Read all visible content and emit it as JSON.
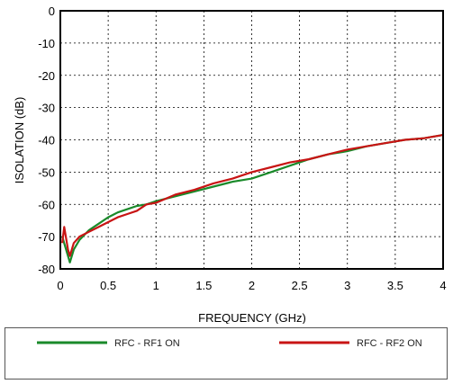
{
  "chart_data": {
    "type": "line",
    "xlabel": "FREQUENCY (GHz)",
    "ylabel": "ISOLATION (dB)",
    "xlim": [
      0,
      4
    ],
    "ylim": [
      -80,
      0
    ],
    "xticks": [
      0,
      0.5,
      1,
      1.5,
      2,
      2.5,
      3,
      3.5,
      4
    ],
    "xtick_labels": [
      "0",
      "0.5",
      "1",
      "1.5",
      "2",
      "2.5",
      "3",
      "3.5",
      "4"
    ],
    "yticks": [
      0,
      -10,
      -20,
      -30,
      -40,
      -50,
      -60,
      -70,
      -80
    ],
    "ytick_labels": [
      "0",
      "-10",
      "-20",
      "-30",
      "-40",
      "-50",
      "-60",
      "-70",
      "-80"
    ],
    "grid": true,
    "legend_position": "bottom",
    "series": [
      {
        "name": "RFC - RF1 ON",
        "color": "#1a8a2a",
        "x": [
          0.02,
          0.06,
          0.1,
          0.14,
          0.2,
          0.3,
          0.4,
          0.5,
          0.6,
          0.7,
          0.8,
          0.9,
          1.0,
          1.2,
          1.4,
          1.6,
          1.8,
          2.0,
          2.2,
          2.4,
          2.6,
          2.8,
          3.0,
          3.2,
          3.4,
          3.6,
          3.8,
          4.0
        ],
        "values": [
          -70,
          -74,
          -78,
          -74,
          -71,
          -68,
          -66,
          -64,
          -62.5,
          -61.5,
          -60.5,
          -60,
          -59,
          -57.5,
          -56,
          -54.5,
          -53,
          -52,
          -50,
          -48,
          -46,
          -44.5,
          -43.5,
          -42,
          -41,
          -40,
          -39.5,
          -38.5
        ]
      },
      {
        "name": "RFC - RF2 ON",
        "color": "#c81414",
        "x": [
          0.02,
          0.04,
          0.08,
          0.1,
          0.14,
          0.2,
          0.3,
          0.4,
          0.5,
          0.6,
          0.7,
          0.8,
          0.9,
          1.0,
          1.2,
          1.4,
          1.6,
          1.8,
          2.0,
          2.2,
          2.4,
          2.6,
          2.8,
          3.0,
          3.2,
          3.4,
          3.6,
          3.8,
          4.0
        ],
        "values": [
          -72,
          -67,
          -74,
          -76,
          -72,
          -70,
          -68.5,
          -67,
          -65.5,
          -64,
          -63,
          -62,
          -60,
          -59.5,
          -57,
          -55.5,
          -53.5,
          -52,
          -50,
          -48.5,
          -47,
          -46,
          -44.5,
          -43,
          -42,
          -41,
          -40,
          -39.5,
          -38.5
        ]
      }
    ]
  }
}
